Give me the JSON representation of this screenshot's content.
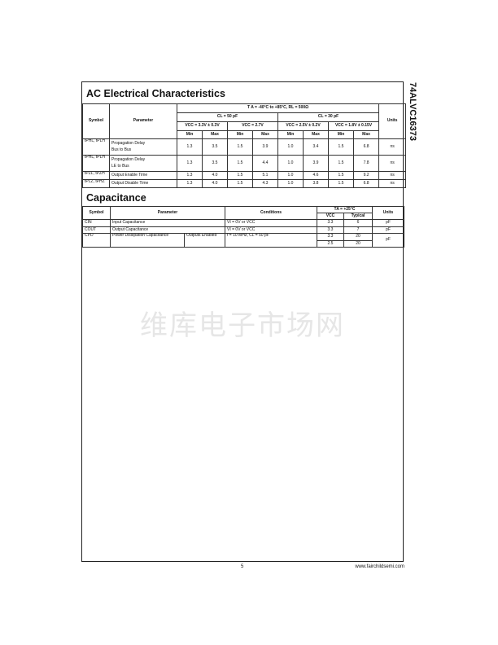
{
  "side_title": "74ALVC16373",
  "watermark": "维库电子市场网",
  "ac": {
    "title": "AC Electrical Characteristics",
    "headers": {
      "symbol": "Symbol",
      "parameter": "Parameter",
      "units": "Units",
      "conditions": "T A = -40°C to +85°C, RL = 500Ω",
      "cl50": "CL = 50 pF",
      "cl30": "CL = 30 pF",
      "vcc": [
        "VCC = 3.3V ± 0.3V",
        "VCC = 2.7V",
        "VCC = 2.5V ± 0.2V",
        "VCC = 1.8V ± 0.15V"
      ],
      "min": "Min",
      "max": "Max"
    },
    "rows": [
      {
        "symbol": "tPHL, tPLH",
        "param1": "Propagation Delay",
        "param2": "Bus to Bus",
        "values": [
          "1.3",
          "3.5",
          "1.5",
          "3.9",
          "1.0",
          "3.4",
          "1.5",
          "6.8"
        ],
        "units": "ns"
      },
      {
        "symbol": "tPHL, tPLH",
        "param1": "Propagation Delay",
        "param2": "LE to Bus",
        "values": [
          "1.3",
          "3.5",
          "1.5",
          "4.4",
          "1.0",
          "3.9",
          "1.5",
          "7.8"
        ],
        "units": "ns"
      },
      {
        "symbol": "tPZL, tPZH",
        "param1": "Output Enable Time",
        "param2": "",
        "values": [
          "1.3",
          "4.0",
          "1.5",
          "5.1",
          "1.0",
          "4.6",
          "1.5",
          "9.2"
        ],
        "units": "ns"
      },
      {
        "symbol": "tPLZ, tPHZ",
        "param1": "Output Disable Time",
        "param2": "",
        "values": [
          "1.3",
          "4.0",
          "1.5",
          "4.3",
          "1.0",
          "3.8",
          "1.5",
          "6.8"
        ],
        "units": "ns"
      }
    ]
  },
  "cap": {
    "title": "Capacitance",
    "headers": {
      "symbol": "Symbol",
      "parameter": "Parameter",
      "conditions": "Conditions",
      "ta": "TA = +25°C",
      "vcc": "VCC",
      "typical": "Typical",
      "units": "Units"
    },
    "rows": [
      {
        "symbol": "CIN",
        "param": "Input Capacitance",
        "conditions": "VI = 0V or VCC",
        "vcc": "3.3",
        "typ": "6",
        "units": "pF"
      },
      {
        "symbol": "COUT",
        "param": "Output Capacitance",
        "conditions": "VI = 0V or VCC",
        "vcc": "3.3",
        "typ": "7",
        "units": "pF"
      },
      {
        "symbol": "CPD",
        "param": "Power Dissipation Capacitance",
        "param_sub": "Outputs Enabled",
        "conditions": "f = 10 MHz, CL = 50 pF",
        "vcc": "3.3",
        "typ": "20",
        "vcc2": "2.5",
        "typ2": "20",
        "units": "pF"
      }
    ]
  },
  "footer": {
    "page": "5",
    "url": "www.fairchildsemi.com"
  }
}
